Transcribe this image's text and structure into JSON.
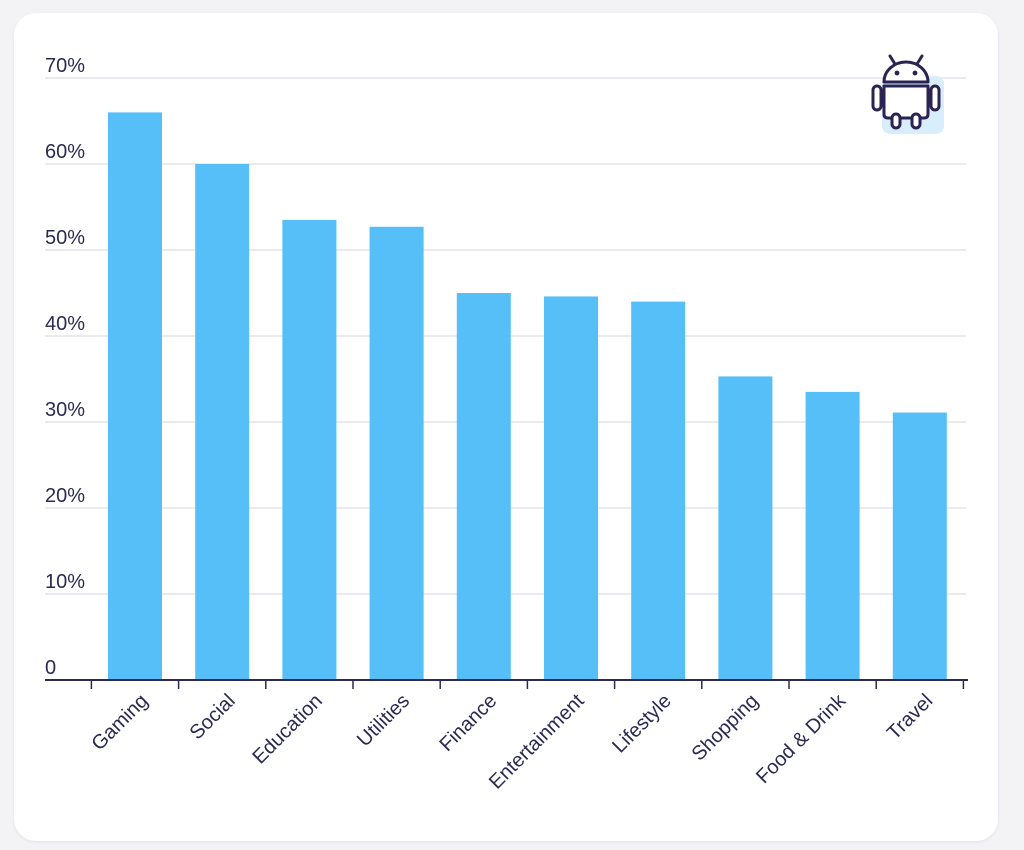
{
  "colors": {
    "bar": "#56bff8",
    "grid": "#dedee8",
    "axis": "#2b2a52",
    "text": "#2b2a52",
    "icon_stroke": "#2b2352",
    "icon_fill": "#d9eefc",
    "card": "#ffffff",
    "background": "#f3f3f6"
  },
  "icon": {
    "name": "android-icon"
  },
  "chart_data": {
    "type": "bar",
    "title": "",
    "xlabel": "",
    "ylabel": "",
    "categories": [
      "Gaming",
      "Social",
      "Education",
      "Utilities",
      "Finance",
      "Entertainment",
      "Lifestyle",
      "Shopping",
      "Food & Drink",
      "Travel"
    ],
    "values": [
      66,
      60,
      53.5,
      52.7,
      45,
      44.6,
      44,
      35.3,
      33.5,
      31.1
    ],
    "unit": "%",
    "ylim": [
      0,
      70
    ],
    "yticks": [
      0,
      10,
      20,
      30,
      40,
      50,
      60,
      70
    ],
    "ytick_labels": [
      "0",
      "10%",
      "20%",
      "30%",
      "40%",
      "50%",
      "60%",
      "70%"
    ],
    "grid": true,
    "legend": "none"
  }
}
